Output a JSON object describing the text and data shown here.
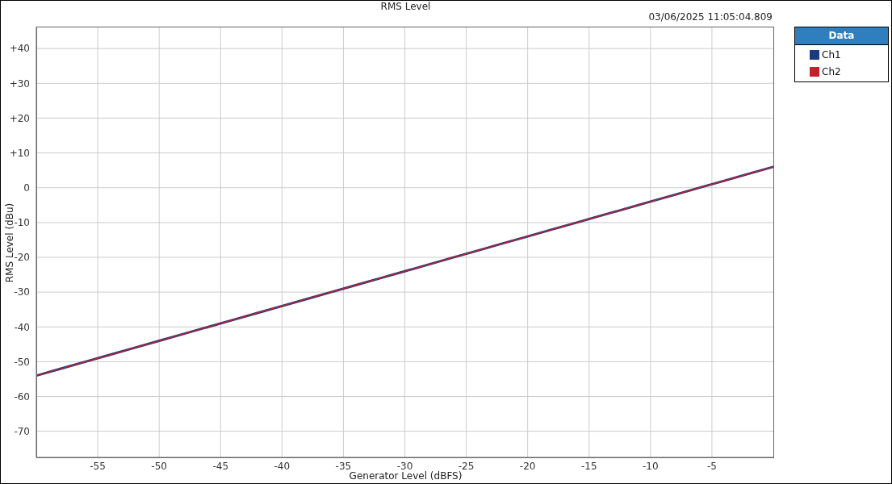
{
  "chart_data": {
    "type": "line",
    "title": "RMS Level",
    "xlabel": "Generator Level (dBFS)",
    "ylabel": "RMS Level (dBu)",
    "legend_title": "Data",
    "annotations": [
      "03/06/2025 11:05:04.809"
    ],
    "x": [
      -60,
      -58,
      -56,
      -54,
      -52,
      -50,
      -48,
      -46,
      -44,
      -42,
      -40,
      -38,
      -36,
      -34,
      -32,
      -30,
      -28,
      -26,
      -24,
      -22,
      -20,
      -18,
      -16,
      -14,
      -12,
      -10,
      -8,
      -6,
      -4,
      -2,
      0
    ],
    "series": [
      {
        "name": "Ch1",
        "color": "#1c3a80",
        "values": [
          -54,
          -52,
          -50,
          -48,
          -46,
          -44,
          -42,
          -40,
          -38,
          -36,
          -34,
          -32,
          -30,
          -28,
          -26,
          -24,
          -22,
          -20,
          -18,
          -16,
          -14,
          -12,
          -10,
          -8,
          -6,
          -4,
          -2,
          0,
          2,
          4,
          6
        ]
      },
      {
        "name": "Ch2",
        "color": "#c8202a",
        "values": [
          -54,
          -52,
          -50,
          -48,
          -46,
          -44,
          -42,
          -40,
          -38,
          -36,
          -34,
          -32,
          -30,
          -28,
          -26,
          -24,
          -22,
          -20,
          -18,
          -16,
          -14,
          -12,
          -10,
          -8,
          -6,
          -4,
          -2,
          0,
          2,
          4,
          6
        ]
      }
    ],
    "xlim": [
      -60,
      0
    ],
    "xticks": [
      -55,
      -50,
      -45,
      -40,
      -35,
      -30,
      -25,
      -20,
      -15,
      -10,
      -5
    ],
    "ylim": [
      -77.5,
      46.3
    ],
    "yticks": [
      -70,
      -60,
      -50,
      -40,
      -30,
      -20,
      -10,
      0,
      {
        "value": 10,
        "label": "+10"
      },
      {
        "value": 20,
        "label": "+20"
      },
      {
        "value": 30,
        "label": "+30"
      },
      {
        "value": 40,
        "label": "+40"
      }
    ],
    "grid": true,
    "legend": "top right",
    "marker": "none"
  }
}
